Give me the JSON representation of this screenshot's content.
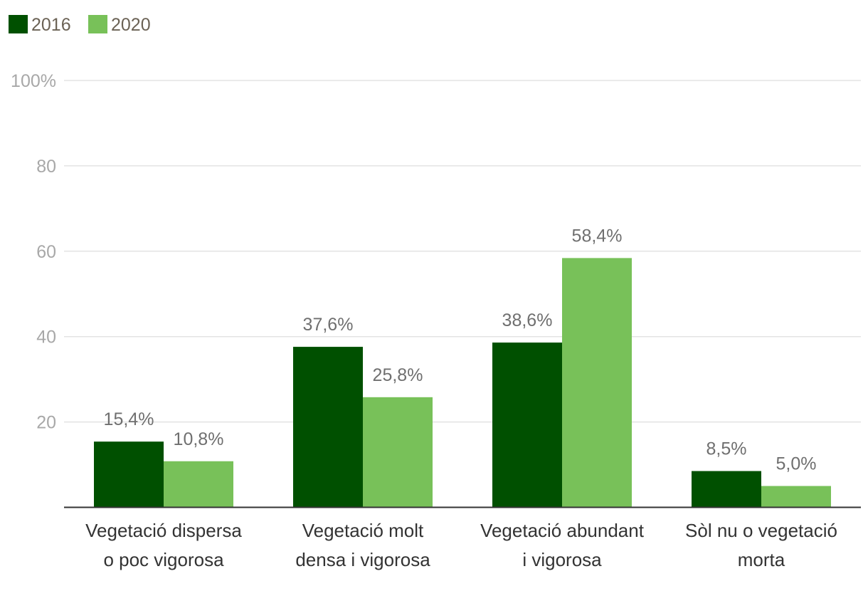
{
  "chart_data": {
    "type": "bar",
    "categories": [
      [
        "Vegetació dispersa",
        "o poc vigorosa"
      ],
      [
        "Vegetació molt",
        "densa i vigorosa"
      ],
      [
        "Vegetació abundant",
        "i vigorosa"
      ],
      [
        "Sòl nu o vegetació",
        "morta"
      ]
    ],
    "series": [
      {
        "name": "2016",
        "color": "#005000",
        "values": [
          15.4,
          37.6,
          38.6,
          8.5
        ],
        "labels": [
          "15,4%",
          "37,6%",
          "38,6%",
          "8,5%"
        ]
      },
      {
        "name": "2020",
        "color": "#78c159",
        "values": [
          10.8,
          25.8,
          58.4,
          5.0
        ],
        "labels": [
          "10,8%",
          "25,8%",
          "58,4%",
          "5,0%"
        ]
      }
    ],
    "ylim": [
      0,
      100
    ],
    "yticks": [
      {
        "value": 20,
        "label": "20"
      },
      {
        "value": 40,
        "label": "40"
      },
      {
        "value": 60,
        "label": "60"
      },
      {
        "value": 80,
        "label": "80"
      },
      {
        "value": 100,
        "label": "100%"
      }
    ],
    "grid": true,
    "legend_position": "top-left",
    "title": "",
    "xlabel": "",
    "ylabel": ""
  }
}
